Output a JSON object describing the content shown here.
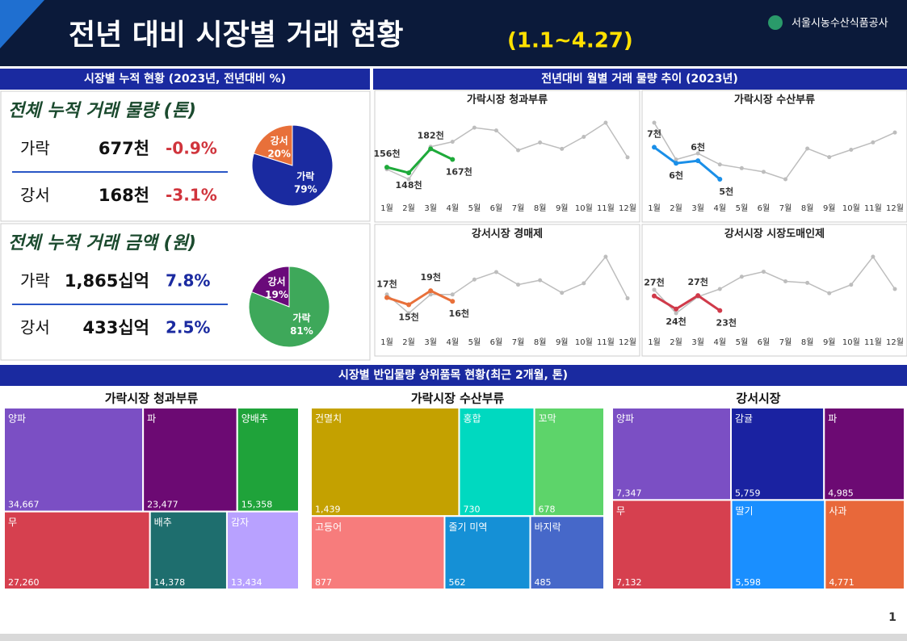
{
  "header": {
    "title": "전년 대비 시장별 거래 현황",
    "period": "(1.1~4.27)",
    "org": "서울시농수산식품공사"
  },
  "left_panel": {
    "title": "시장별 누적 현황 (2023년, 전년대비 %)",
    "volume": {
      "title": "전체 누적 거래 물량 (톤)",
      "change_color": "#d0343c",
      "rows": [
        [
          "가락",
          "677천",
          "-0.9%"
        ],
        [
          "강서",
          "168천",
          "-3.1%"
        ]
      ]
    },
    "amount": {
      "title": "전체 누적 거래 금액 (원)",
      "change_color": "#1a2aa0",
      "rows": [
        [
          "가락",
          "1,865십억",
          "7.8%"
        ],
        [
          "강서",
          "433십억",
          "2.5%"
        ]
      ]
    }
  },
  "right_panel": {
    "title": "전년대비 월별 거래 물량 추이 (2023년)"
  },
  "bottom_panel": {
    "title": "시장별 반입물량 상위품목 현황(최근 2개월, 톤)"
  },
  "page_number": "1",
  "chart_data": [
    {
      "type": "pie",
      "categories": [
        "강서",
        "가락"
      ],
      "values": [
        20,
        79
      ],
      "value_labels": [
        "20%",
        "79%"
      ],
      "colors": [
        "#e8703a",
        "#1a2aa0"
      ]
    },
    {
      "type": "pie",
      "categories": [
        "강서",
        "가락"
      ],
      "values": [
        19,
        81
      ],
      "value_labels": [
        "19%",
        "81%"
      ],
      "colors": [
        "#6a0a7a",
        "#3ea85a"
      ]
    },
    {
      "type": "line",
      "title": "가락시장 청과부류",
      "categories": [
        "1월",
        "2월",
        "3월",
        "4월",
        "5월",
        "6월",
        "7월",
        "8월",
        "9월",
        "10월",
        "11월",
        "12월"
      ],
      "series": [
        {
          "color": "#bdbdbd",
          "values": [
            153,
            139,
            185,
            192,
            212,
            208,
            180,
            191,
            182,
            199,
            219,
            170
          ]
        },
        {
          "color": "#1eaa3a",
          "values": [
            156,
            148,
            182,
            167,
            null,
            null,
            null,
            null,
            null,
            null,
            null,
            null
          ],
          "value_labels": [
            "156천",
            "148천",
            "182천",
            "167천",
            null,
            null,
            null,
            null,
            null,
            null,
            null,
            null
          ]
        }
      ]
    },
    {
      "type": "line",
      "title": "가락시장 수산부류",
      "categories": [
        "1월",
        "2월",
        "3월",
        "4월",
        "5월",
        "6월",
        "7월",
        "8월",
        "9월",
        "10월",
        "11월",
        "12월"
      ],
      "series": [
        {
          "color": "#bdbdbd",
          "values": [
            9.2,
            6.2,
            6.7,
            5.8,
            5.5,
            5.2,
            4.6,
            7.1,
            6.4,
            7.0,
            7.6,
            8.4
          ]
        },
        {
          "color": "#1a8fe8",
          "values": [
            7.2,
            5.9,
            6.1,
            4.6,
            null,
            null,
            null,
            null,
            null,
            null,
            null,
            null
          ],
          "value_labels": [
            "7천",
            "6천",
            "6천",
            "5천",
            null,
            null,
            null,
            null,
            null,
            null,
            null,
            null
          ]
        }
      ]
    },
    {
      "type": "line",
      "title": "강서시장 경매제",
      "categories": [
        "1월",
        "2월",
        "3월",
        "4월",
        "5월",
        "6월",
        "7월",
        "8월",
        "9월",
        "10월",
        "11월",
        "12월"
      ],
      "series": [
        {
          "color": "#bdbdbd",
          "values": [
            18.3,
            12.8,
            18.3,
            18.3,
            22.7,
            24.9,
            21.2,
            22.5,
            18.8,
            21.6,
            29.4,
            17.2
          ]
        },
        {
          "color": "#e8703a",
          "values": [
            17.4,
            15.3,
            19.4,
            16.3,
            null,
            null,
            null,
            null,
            null,
            null,
            null,
            null
          ],
          "value_labels": [
            "17천",
            "15천",
            "19천",
            "16천",
            null,
            null,
            null,
            null,
            null,
            null,
            null,
            null
          ]
        }
      ]
    },
    {
      "type": "line",
      "title": "강서시장 시장도매인제",
      "categories": [
        "1월",
        "2월",
        "3월",
        "4월",
        "5월",
        "6월",
        "7월",
        "8월",
        "9월",
        "10월",
        "11월",
        "12월"
      ],
      "series": [
        {
          "color": "#bdbdbd",
          "values": [
            28.8,
            22.7,
            27.0,
            29.0,
            32.2,
            33.5,
            31.0,
            30.6,
            27.9,
            30.1,
            37.4,
            29.0
          ]
        },
        {
          "color": "#d03a4a",
          "values": [
            27.2,
            23.8,
            27.3,
            23.4,
            null,
            null,
            null,
            null,
            null,
            null,
            null,
            null
          ],
          "value_labels": [
            "27천",
            "24천",
            "27천",
            "23천",
            null,
            null,
            null,
            null,
            null,
            null,
            null,
            null
          ]
        }
      ]
    },
    {
      "type": "treemap",
      "title": "가락시장 청과부류",
      "categories": [
        "양파",
        "파",
        "양배추",
        "무",
        "배추",
        "감자"
      ],
      "values": [
        34667,
        23477,
        15358,
        27260,
        14378,
        13434
      ],
      "value_labels": [
        "34,667",
        "23,477",
        "15,358",
        "27,260",
        "14,378",
        "13,434"
      ],
      "colors": [
        "#7b4fc4",
        "#6c0a73",
        "#1fa33a",
        "#d6404f",
        "#1e6e6e",
        "#b8a1ff"
      ]
    },
    {
      "type": "treemap",
      "title": "가락시장 수산부류",
      "categories": [
        "건멸치",
        "홍합",
        "꼬막",
        "고등어",
        "줄기 미역",
        "바지락"
      ],
      "values": [
        1439,
        730,
        678,
        877,
        562,
        485
      ],
      "value_labels": [
        "1,439",
        "730",
        "678",
        "877",
        "562",
        "485"
      ],
      "colors": [
        "#c4a100",
        "#00d9c0",
        "#5dd46a",
        "#f77c7c",
        "#1590d6",
        "#4668c9"
      ]
    },
    {
      "type": "treemap",
      "title": "강서시장",
      "categories": [
        "양파",
        "감귤",
        "파",
        "무",
        "딸기",
        "사과"
      ],
      "values": [
        7347,
        5759,
        4985,
        7132,
        5598,
        4771
      ],
      "value_labels": [
        "7,347",
        "5,759",
        "4,985",
        "7,132",
        "5,598",
        "4,771"
      ],
      "colors": [
        "#7b4fc4",
        "#1a22a1",
        "#6c0a73",
        "#d6404f",
        "#1a8fff",
        "#e8683a"
      ]
    }
  ]
}
